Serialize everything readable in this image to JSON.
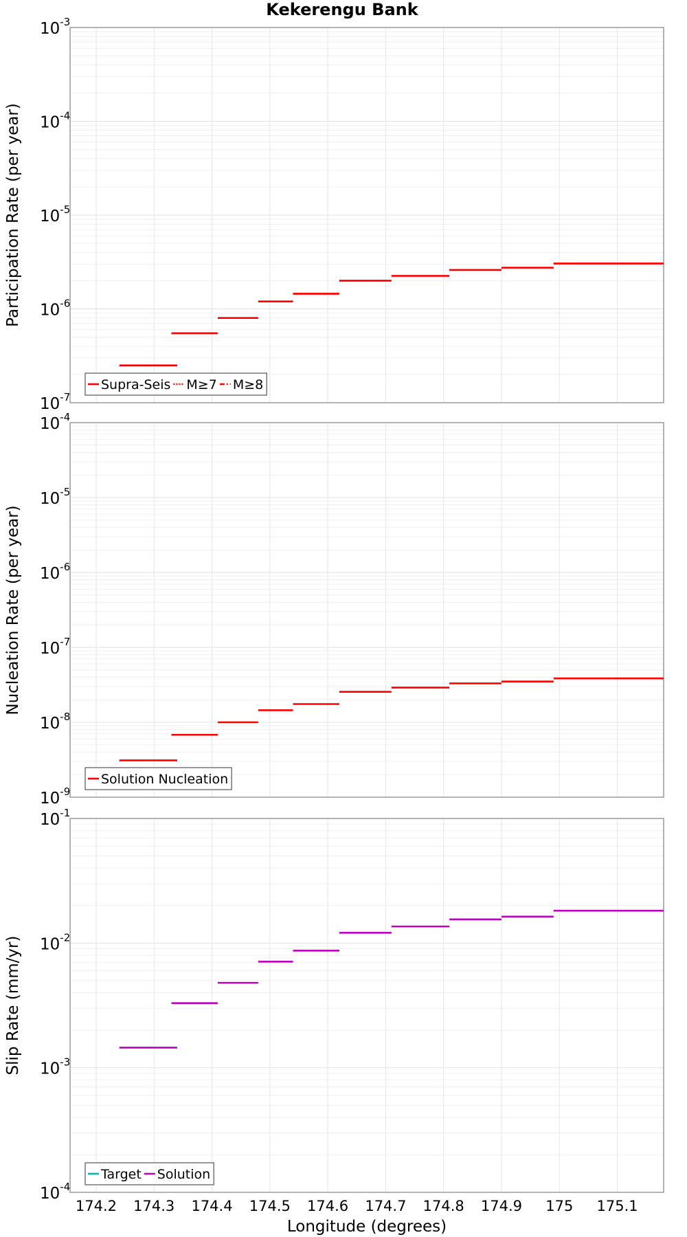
{
  "title": "Kekerengu Bank",
  "xlabel": "Longitude (degrees)",
  "x_ticks": [
    "174.2",
    "174.3",
    "174.4",
    "174.5",
    "174.6",
    "174.7",
    "174.8",
    "174.9",
    "175",
    "175.1"
  ],
  "x_tick_values": [
    174.2,
    174.3,
    174.4,
    174.5,
    174.6,
    174.7,
    174.8,
    174.9,
    175.0,
    175.1
  ],
  "xlim": [
    174.155,
    175.18
  ],
  "chart_data": [
    {
      "type": "line",
      "step": true,
      "log_y": true,
      "ylabel": "Participation Rate (per year)",
      "ylim": [
        1e-07,
        0.001
      ],
      "y_ticks": [
        {
          "base": "10",
          "exp": "-7"
        },
        {
          "base": "10",
          "exp": "-6"
        },
        {
          "base": "10",
          "exp": "-5"
        },
        {
          "base": "10",
          "exp": "-4"
        },
        {
          "base": "10",
          "exp": "-3"
        }
      ],
      "grid": true,
      "legend_position": "bottom-left",
      "legend": [
        {
          "label": "Supra-Seis",
          "style": "solid",
          "color": "#ff0000"
        },
        {
          "label": "M≥7",
          "style": "dotted",
          "color": "#ff0000"
        },
        {
          "label": "M≥8",
          "style": "dashdot",
          "color": "#ff0000"
        }
      ],
      "series": [
        {
          "name": "Supra-Seis",
          "color": "#ff0000",
          "segments": [
            {
              "x0": 174.24,
              "x1": 174.34,
              "y": 2.5e-07
            },
            {
              "x0": 174.33,
              "x1": 174.41,
              "y": 5.5e-07
            },
            {
              "x0": 174.41,
              "x1": 174.48,
              "y": 8e-07
            },
            {
              "x0": 174.48,
              "x1": 174.54,
              "y": 1.2e-06
            },
            {
              "x0": 174.54,
              "x1": 174.62,
              "y": 1.45e-06
            },
            {
              "x0": 174.62,
              "x1": 174.71,
              "y": 2e-06
            },
            {
              "x0": 174.71,
              "x1": 174.81,
              "y": 2.25e-06
            },
            {
              "x0": 174.81,
              "x1": 174.9,
              "y": 2.6e-06
            },
            {
              "x0": 174.9,
              "x1": 174.99,
              "y": 2.75e-06
            },
            {
              "x0": 174.99,
              "x1": 175.09,
              "y": 3.05e-06
            },
            {
              "x0": 175.09,
              "x1": 175.18,
              "y": 3.05e-06
            }
          ]
        },
        {
          "name": "M≥7",
          "color": "#ff0000",
          "style": "dotted",
          "segments": [
            {
              "x0": 174.33,
              "x1": 174.41,
              "y": 5.5e-07
            },
            {
              "x0": 174.48,
              "x1": 174.54,
              "y": 1.2e-06
            },
            {
              "x0": 174.54,
              "x1": 174.62,
              "y": 1.45e-06
            },
            {
              "x0": 174.62,
              "x1": 174.71,
              "y": 2e-06
            },
            {
              "x0": 174.81,
              "x1": 174.9,
              "y": 2.6e-06
            },
            {
              "x0": 174.99,
              "x1": 175.09,
              "y": 3.05e-06
            },
            {
              "x0": 175.09,
              "x1": 175.18,
              "y": 3.05e-06
            }
          ]
        }
      ]
    },
    {
      "type": "line",
      "step": true,
      "log_y": true,
      "ylabel": "Nucleation Rate (per year)",
      "ylim": [
        1e-09,
        0.0001
      ],
      "y_ticks": [
        {
          "base": "10",
          "exp": "-9"
        },
        {
          "base": "10",
          "exp": "-8"
        },
        {
          "base": "10",
          "exp": "-7"
        },
        {
          "base": "10",
          "exp": "-6"
        },
        {
          "base": "10",
          "exp": "-5"
        },
        {
          "base": "10",
          "exp": "-4"
        }
      ],
      "grid": true,
      "legend_position": "bottom-left",
      "legend": [
        {
          "label": "Solution Nucleation",
          "style": "solid",
          "color": "#ff0000"
        }
      ],
      "series": [
        {
          "name": "Solution Nucleation",
          "color": "#ff0000",
          "segments": [
            {
              "x0": 174.24,
              "x1": 174.34,
              "y": 3.1e-09
            },
            {
              "x0": 174.33,
              "x1": 174.41,
              "y": 6.8e-09
            },
            {
              "x0": 174.41,
              "x1": 174.48,
              "y": 1e-08
            },
            {
              "x0": 174.48,
              "x1": 174.54,
              "y": 1.45e-08
            },
            {
              "x0": 174.54,
              "x1": 174.62,
              "y": 1.75e-08
            },
            {
              "x0": 174.62,
              "x1": 174.71,
              "y": 2.55e-08
            },
            {
              "x0": 174.71,
              "x1": 174.81,
              "y": 2.9e-08
            },
            {
              "x0": 174.81,
              "x1": 174.9,
              "y": 3.3e-08
            },
            {
              "x0": 174.9,
              "x1": 174.99,
              "y": 3.5e-08
            },
            {
              "x0": 174.99,
              "x1": 175.09,
              "y": 3.85e-08
            },
            {
              "x0": 175.09,
              "x1": 175.18,
              "y": 3.85e-08
            }
          ]
        }
      ]
    },
    {
      "type": "line",
      "step": true,
      "log_y": true,
      "ylabel": "Slip Rate (mm/yr)",
      "ylim": [
        0.0001,
        0.1
      ],
      "y_ticks": [
        {
          "base": "10",
          "exp": "-4"
        },
        {
          "base": "10",
          "exp": "-3"
        },
        {
          "base": "10",
          "exp": "-2"
        },
        {
          "base": "10",
          "exp": "-1"
        }
      ],
      "grid": true,
      "legend_position": "bottom-left",
      "legend": [
        {
          "label": "Target",
          "style": "solid",
          "color": "#00b2b2"
        },
        {
          "label": "Solution",
          "style": "solid",
          "color": "#c000c0"
        }
      ],
      "series": [
        {
          "name": "Solution",
          "color": "#c000c0",
          "segments": [
            {
              "x0": 174.24,
              "x1": 174.34,
              "y": 0.00145
            },
            {
              "x0": 174.33,
              "x1": 174.41,
              "y": 0.0033
            },
            {
              "x0": 174.41,
              "x1": 174.48,
              "y": 0.0048
            },
            {
              "x0": 174.48,
              "x1": 174.54,
              "y": 0.0071
            },
            {
              "x0": 174.54,
              "x1": 174.62,
              "y": 0.0087
            },
            {
              "x0": 174.62,
              "x1": 174.71,
              "y": 0.0121
            },
            {
              "x0": 174.71,
              "x1": 174.81,
              "y": 0.0136
            },
            {
              "x0": 174.81,
              "x1": 174.9,
              "y": 0.0155
            },
            {
              "x0": 174.9,
              "x1": 174.99,
              "y": 0.0163
            },
            {
              "x0": 174.99,
              "x1": 175.09,
              "y": 0.0182
            },
            {
              "x0": 175.09,
              "x1": 175.18,
              "y": 0.0182
            }
          ]
        }
      ]
    }
  ]
}
